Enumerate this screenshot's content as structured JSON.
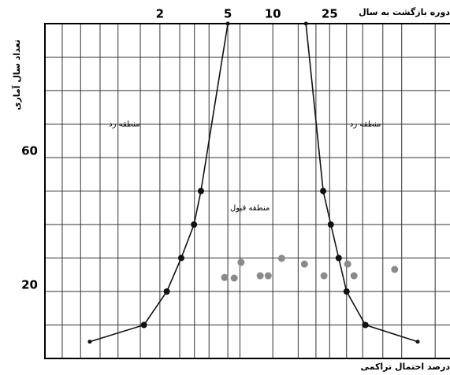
{
  "chart_data": {
    "type": "line",
    "title": "دوره بازگشت به سال",
    "y_label": "تعداد سال آماری",
    "x_label": "درصد احتمال تراکمی",
    "x_scale": "gumbel",
    "xlim": [
      1.009,
      183
    ],
    "ylim": [
      0,
      100
    ],
    "xticks": [
      2,
      5,
      10,
      25
    ],
    "x_grid": [
      1.03,
      1.08,
      1.18,
      1.33,
      1.62,
      2,
      2.55,
      3.1,
      3.8,
      5,
      6,
      10,
      15,
      20,
      25,
      33,
      43,
      60,
      82,
      143
    ],
    "yticks": [
      20,
      60
    ],
    "y_grid": [
      10,
      20,
      30,
      40,
      50,
      60,
      70,
      80,
      90
    ],
    "grid": true,
    "annotations": [
      {
        "text": "منطقه رد",
        "x": 1.4,
        "y": 70
      },
      {
        "text": "منطقه رد",
        "x": 45,
        "y": 70
      },
      {
        "text": "منطقه قبول",
        "x": 7,
        "y": 45
      }
    ],
    "series": [
      {
        "mode": "line",
        "color": "#111111",
        "x": [
          1.12,
          1.68,
          2.17,
          2.6,
          3.08,
          3.39,
          5
        ],
        "values": [
          5,
          10,
          20,
          30,
          40,
          50,
          100
        ]
      },
      {
        "mode": "line",
        "color": "#111111",
        "x": [
          17,
          22.5,
          25.5,
          29,
          33,
          45,
          107
        ],
        "values": [
          100,
          50,
          40,
          30,
          20,
          10,
          5
        ]
      },
      {
        "mode": "points",
        "color": "#8a8a8a",
        "x": [
          4.77,
          5.5,
          6.1,
          8.2,
          9.3,
          11.5,
          16.6,
          22.8,
          33.6,
          37.3,
          73
        ],
        "values": [
          24.2,
          24,
          28.7,
          24.7,
          24.7,
          29.9,
          28.2,
          24.7,
          28.2,
          24.7,
          26.6
        ]
      }
    ]
  }
}
